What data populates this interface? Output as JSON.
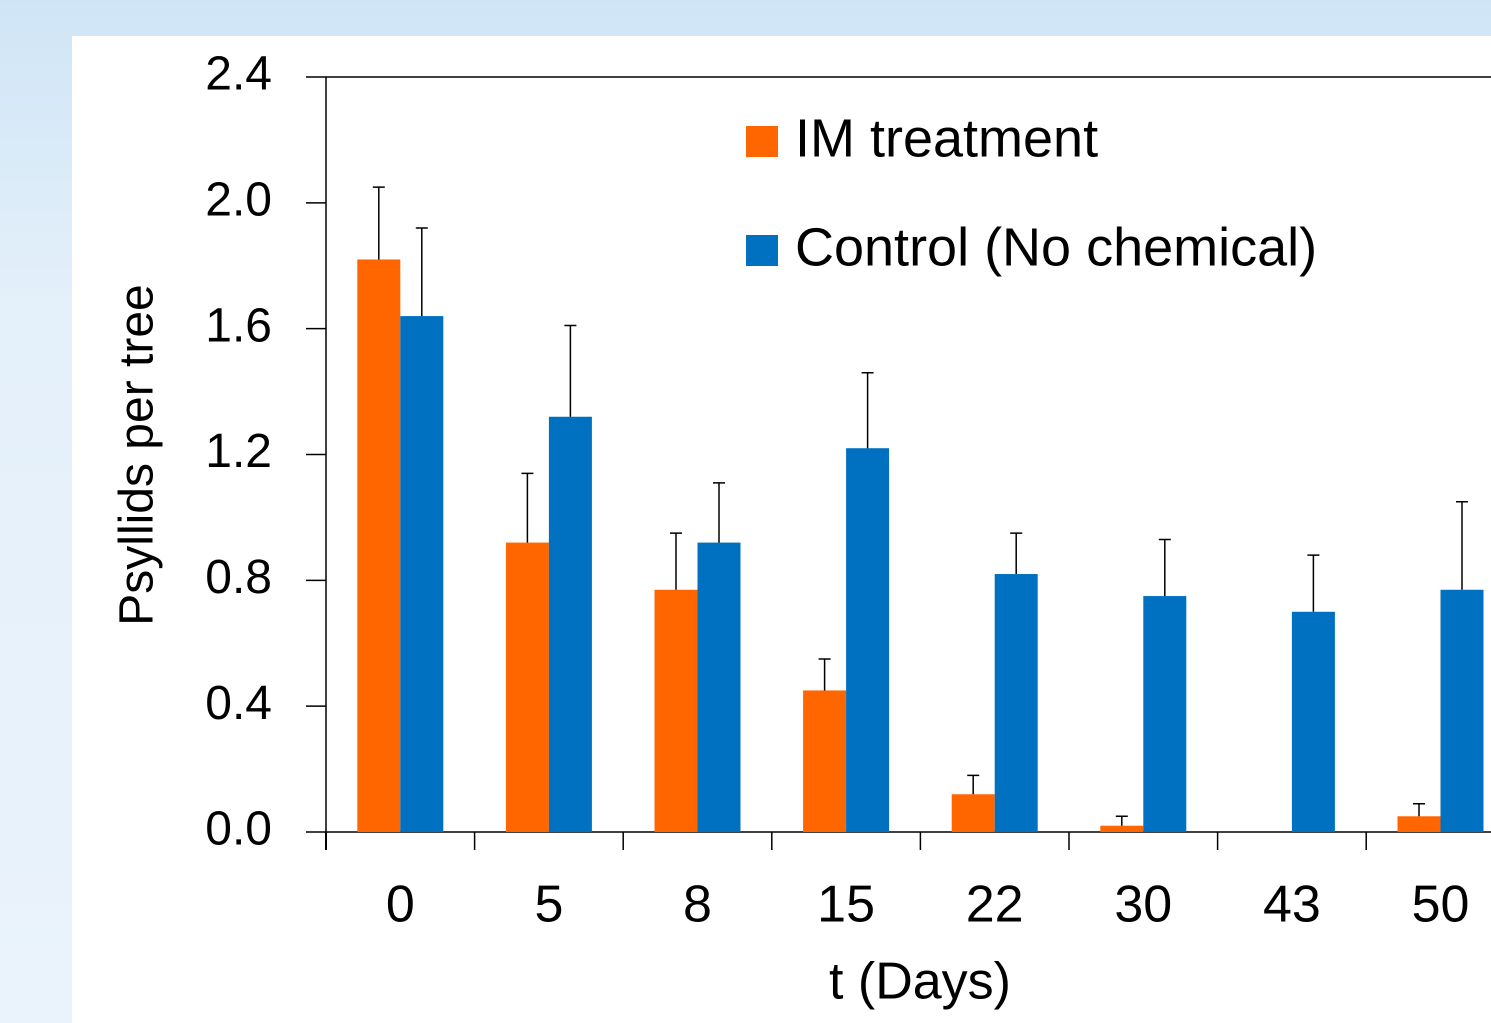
{
  "chart_data": {
    "type": "bar",
    "categories": [
      "0",
      "5",
      "8",
      "15",
      "22",
      "30",
      "43",
      "50"
    ],
    "series": [
      {
        "name": "IM treatment",
        "color": "#ff6600",
        "values": [
          1.82,
          0.92,
          0.77,
          0.45,
          0.12,
          0.02,
          0,
          0.05
        ],
        "errors": [
          0.23,
          0.22,
          0.18,
          0.1,
          0.06,
          0.03,
          0,
          0.04
        ]
      },
      {
        "name": "Control (No chemical)",
        "color": "#0070c0",
        "values": [
          1.64,
          1.32,
          0.92,
          1.22,
          0.82,
          0.75,
          0.7,
          0.77
        ],
        "errors": [
          0.28,
          0.29,
          0.19,
          0.24,
          0.13,
          0.18,
          0.18,
          0.28
        ]
      }
    ],
    "ylim": [
      0,
      2.4
    ],
    "yticks": [
      {
        "value": 0,
        "label": "0.0"
      },
      0.4,
      0.8,
      1.2,
      1.6,
      {
        "value": 2,
        "label": "2.0"
      },
      2.4
    ],
    "ylabel": "Psyllids per tree",
    "xlabel": "t (Days)"
  }
}
